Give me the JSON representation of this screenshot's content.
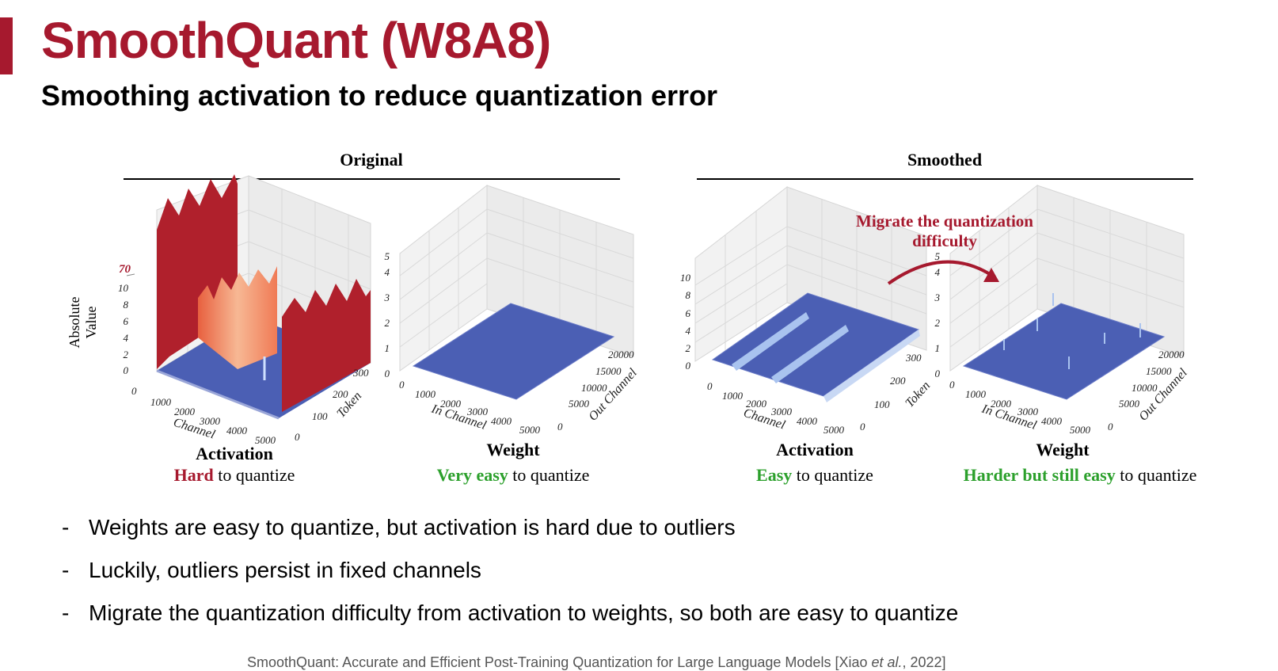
{
  "title": "SmoothQuant (W8A8)",
  "subtitle": "Smoothing activation to reduce quantization error",
  "colors": {
    "accent": "#a6192e",
    "easy": "#2ca02c",
    "surface_blue": "#4b5fb4",
    "outlier_red": "#b0202c",
    "outlier_salmon": "#f2a07d"
  },
  "figure": {
    "section_original": "Original",
    "section_smoothed": "Smoothed",
    "zlabel_line1": "Absolute",
    "zlabel_line2": "Value",
    "outlier_tick": "70",
    "act_z_ticks": [
      "0",
      "2",
      "4",
      "6",
      "8",
      "10"
    ],
    "weight_z_ticks": [
      "0",
      "1",
      "2",
      "3",
      "4",
      "5"
    ],
    "channel_ticks": [
      "0",
      "1000",
      "2000",
      "3000",
      "4000",
      "5000"
    ],
    "token_ticks": [
      "0",
      "100",
      "200",
      "300"
    ],
    "in_channel_ticks": [
      "0",
      "1000",
      "2000",
      "3000",
      "4000",
      "5000"
    ],
    "out_channel_ticks": [
      "0",
      "5000",
      "10000",
      "15000",
      "20000"
    ],
    "axis_channel": "Channel",
    "axis_token": "Token",
    "axis_in_channel": "In Channel",
    "axis_out_channel": "Out Channel",
    "migrate_line1": "Migrate the quantization",
    "migrate_line2": "difficulty",
    "panels": [
      {
        "title": "Activation",
        "highlight": "Hard",
        "rest": " to quantize",
        "tone": "hard"
      },
      {
        "title": "Weight",
        "highlight": "Very easy",
        "rest": " to quantize",
        "tone": "easy"
      },
      {
        "title": "Activation",
        "highlight": "Easy",
        "rest": " to quantize",
        "tone": "easy"
      },
      {
        "title": "Weight",
        "highlight": "Harder but still easy",
        "rest": " to quantize",
        "tone": "easy"
      }
    ]
  },
  "bullets": [
    "Weights are easy to quantize, but activation is hard due to outliers",
    "Luckily, outliers persist in fixed channels",
    "Migrate the quantization difficulty from activation to weights, so both are easy to quantize"
  ],
  "citation": {
    "prefix": "SmoothQuant: Accurate and Efficient Post-Training Quantization for Large Language Models [Xiao ",
    "etal": "et al.",
    "suffix": ", 2022]"
  }
}
